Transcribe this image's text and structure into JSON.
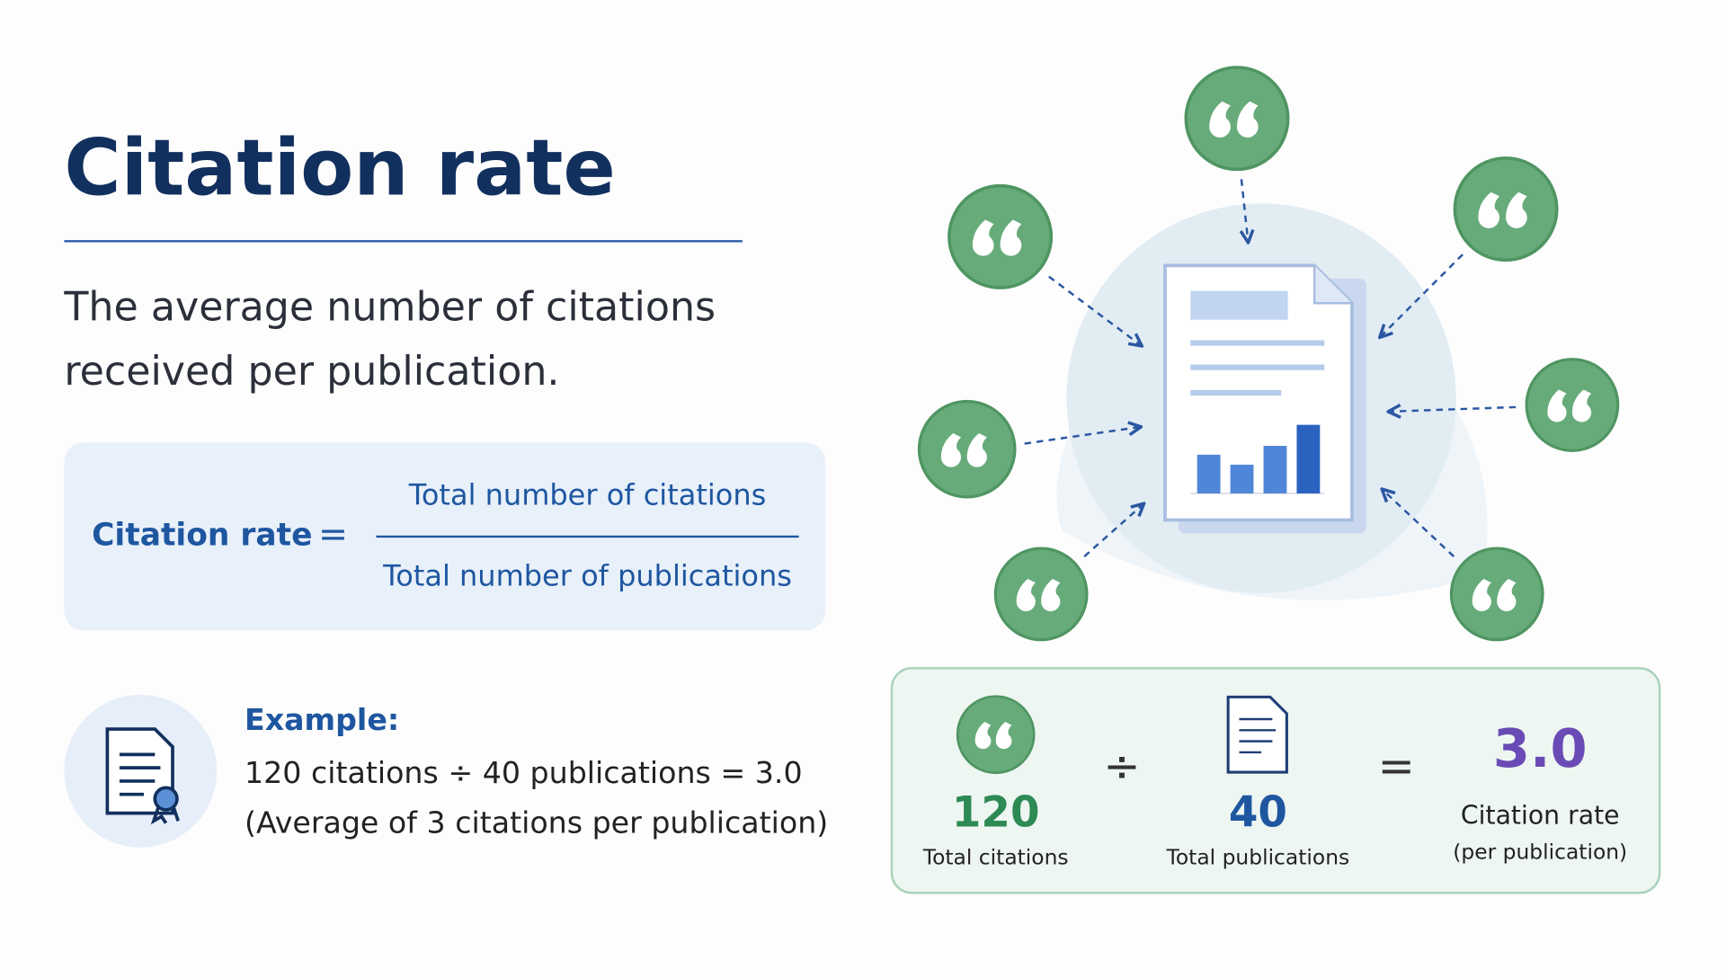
{
  "header": {
    "title": "Citation rate",
    "description": [
      "The average number of citations",
      "received per publication."
    ]
  },
  "formula": {
    "label": "Citation rate",
    "equals": "=",
    "numerator": "Total number of citations",
    "denominator": "Total number of publications"
  },
  "example": {
    "heading": "Example:",
    "lines": [
      "120 citations ÷ 40 publications = 3.0",
      "(Average of 3 citations per publication)"
    ]
  },
  "summary": {
    "citations": {
      "value": "120",
      "label": "Total citations"
    },
    "divide": "÷",
    "publications": {
      "value": "40",
      "label": "Total publications"
    },
    "equals": "=",
    "result": {
      "value": "3.0",
      "label": "Citation rate",
      "note": "(per publication)"
    }
  }
}
